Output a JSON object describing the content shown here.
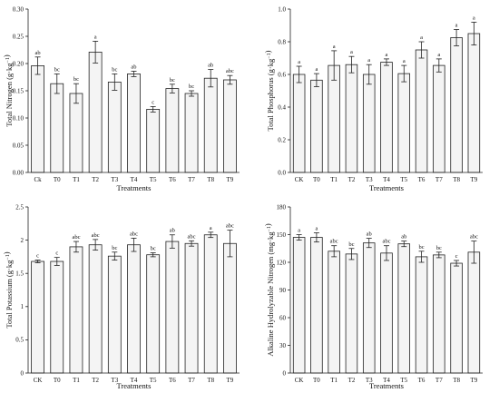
{
  "chart_data": [
    {
      "type": "bar",
      "categories": [
        "Ck",
        "T0",
        "T1",
        "T2",
        "T3",
        "T4",
        "T5",
        "T6",
        "T7",
        "T8",
        "T9"
      ],
      "values": [
        0.196,
        0.163,
        0.145,
        0.221,
        0.166,
        0.181,
        0.116,
        0.154,
        0.145,
        0.173,
        0.17
      ],
      "errors": [
        0.016,
        0.018,
        0.018,
        0.02,
        0.015,
        0.005,
        0.005,
        0.008,
        0.005,
        0.016,
        0.008
      ],
      "significance": [
        "ab",
        "bc",
        "bc",
        "a",
        "bc",
        "ab",
        "c",
        "bc",
        "bc",
        "ab",
        "abc"
      ],
      "ylabel_main": "Total Nitrogen",
      "ylabel_unit": "(g·kg",
      "ylabel_sup": "−1",
      "ylabel_close": ")",
      "xlabel": "Treatments",
      "ylim": [
        0,
        0.3
      ],
      "yticks": [
        "0.00",
        "0.05",
        "0.10",
        "0.15",
        "0.20",
        "0.25",
        "0.30"
      ],
      "ytick_values": [
        0,
        0.05,
        0.1,
        0.15,
        0.2,
        0.25,
        0.3
      ],
      "grid": false
    },
    {
      "type": "bar",
      "categories": [
        "CK",
        "T0",
        "T1",
        "T2",
        "T3",
        "T4",
        "T5",
        "T6",
        "T7",
        "T8",
        "T9"
      ],
      "values": [
        0.6,
        0.565,
        0.655,
        0.66,
        0.6,
        0.675,
        0.605,
        0.75,
        0.655,
        0.825,
        0.85
      ],
      "errors": [
        0.05,
        0.04,
        0.09,
        0.05,
        0.06,
        0.02,
        0.05,
        0.05,
        0.04,
        0.05,
        0.07
      ],
      "significance": [
        "a",
        "a",
        "a",
        "a",
        "a",
        "a",
        "a",
        "a",
        "a",
        "a",
        "a"
      ],
      "ylabel_main": "Total Phosphorus",
      "ylabel_unit": "(g·kg",
      "ylabel_sup": "−1",
      "ylabel_close": ")",
      "xlabel": "Treatments",
      "ylim": [
        0,
        1.0
      ],
      "yticks": [
        "0.0",
        "0.2",
        "0.4",
        "0.6",
        "0.8",
        "1.0"
      ],
      "ytick_values": [
        0,
        0.2,
        0.4,
        0.6,
        0.8,
        1.0
      ],
      "grid": false
    },
    {
      "type": "bar",
      "categories": [
        "CK",
        "T0",
        "T1",
        "T2",
        "T3",
        "T4",
        "T5",
        "T6",
        "T7",
        "T8",
        "T9"
      ],
      "values": [
        1.68,
        1.68,
        1.9,
        1.93,
        1.76,
        1.93,
        1.78,
        1.98,
        1.95,
        2.08,
        1.95
      ],
      "errors": [
        0.02,
        0.06,
        0.08,
        0.08,
        0.06,
        0.1,
        0.03,
        0.1,
        0.04,
        0.04,
        0.2
      ],
      "significance": [
        "c",
        "c",
        "abc",
        "abc",
        "bc",
        "abc",
        "bc",
        "ab",
        "abc",
        "a",
        "abc"
      ],
      "ylabel_main": "Total Potassium",
      "ylabel_unit": "(g·kg",
      "ylabel_sup": "−1",
      "ylabel_close": ")",
      "xlabel": "Treatments",
      "ylim": [
        0,
        2.5
      ],
      "yticks": [
        "0",
        "0.5",
        "1",
        "1.5",
        "2",
        "2.5"
      ],
      "ytick_values": [
        0,
        0.5,
        1.0,
        1.5,
        2.0,
        2.5
      ],
      "grid": false
    },
    {
      "type": "bar",
      "categories": [
        "CK",
        "T0",
        "T1",
        "T2",
        "T3",
        "T4",
        "T5",
        "T6",
        "T7",
        "T8",
        "T9"
      ],
      "values": [
        147,
        147,
        132,
        129,
        141,
        130,
        140,
        126,
        128,
        119,
        131
      ],
      "errors": [
        3,
        5,
        6,
        6,
        5,
        8,
        3,
        6,
        3,
        3,
        12
      ],
      "significance": [
        "a",
        "a",
        "abc",
        "bc",
        "ab",
        "abc",
        "ab",
        "bc",
        "bc",
        "c",
        "abc"
      ],
      "ylabel_main": "Alkaline Hydrolyzable Nitrogen",
      "ylabel_unit": "(mg·kg",
      "ylabel_sup": "−1",
      "ylabel_close": ")",
      "xlabel": "Treatments",
      "ylim": [
        0,
        180
      ],
      "yticks": [
        "0",
        "30",
        "60",
        "90",
        "120",
        "150",
        "180"
      ],
      "ytick_values": [
        0,
        30,
        60,
        90,
        120,
        150,
        180
      ],
      "grid": false
    }
  ]
}
